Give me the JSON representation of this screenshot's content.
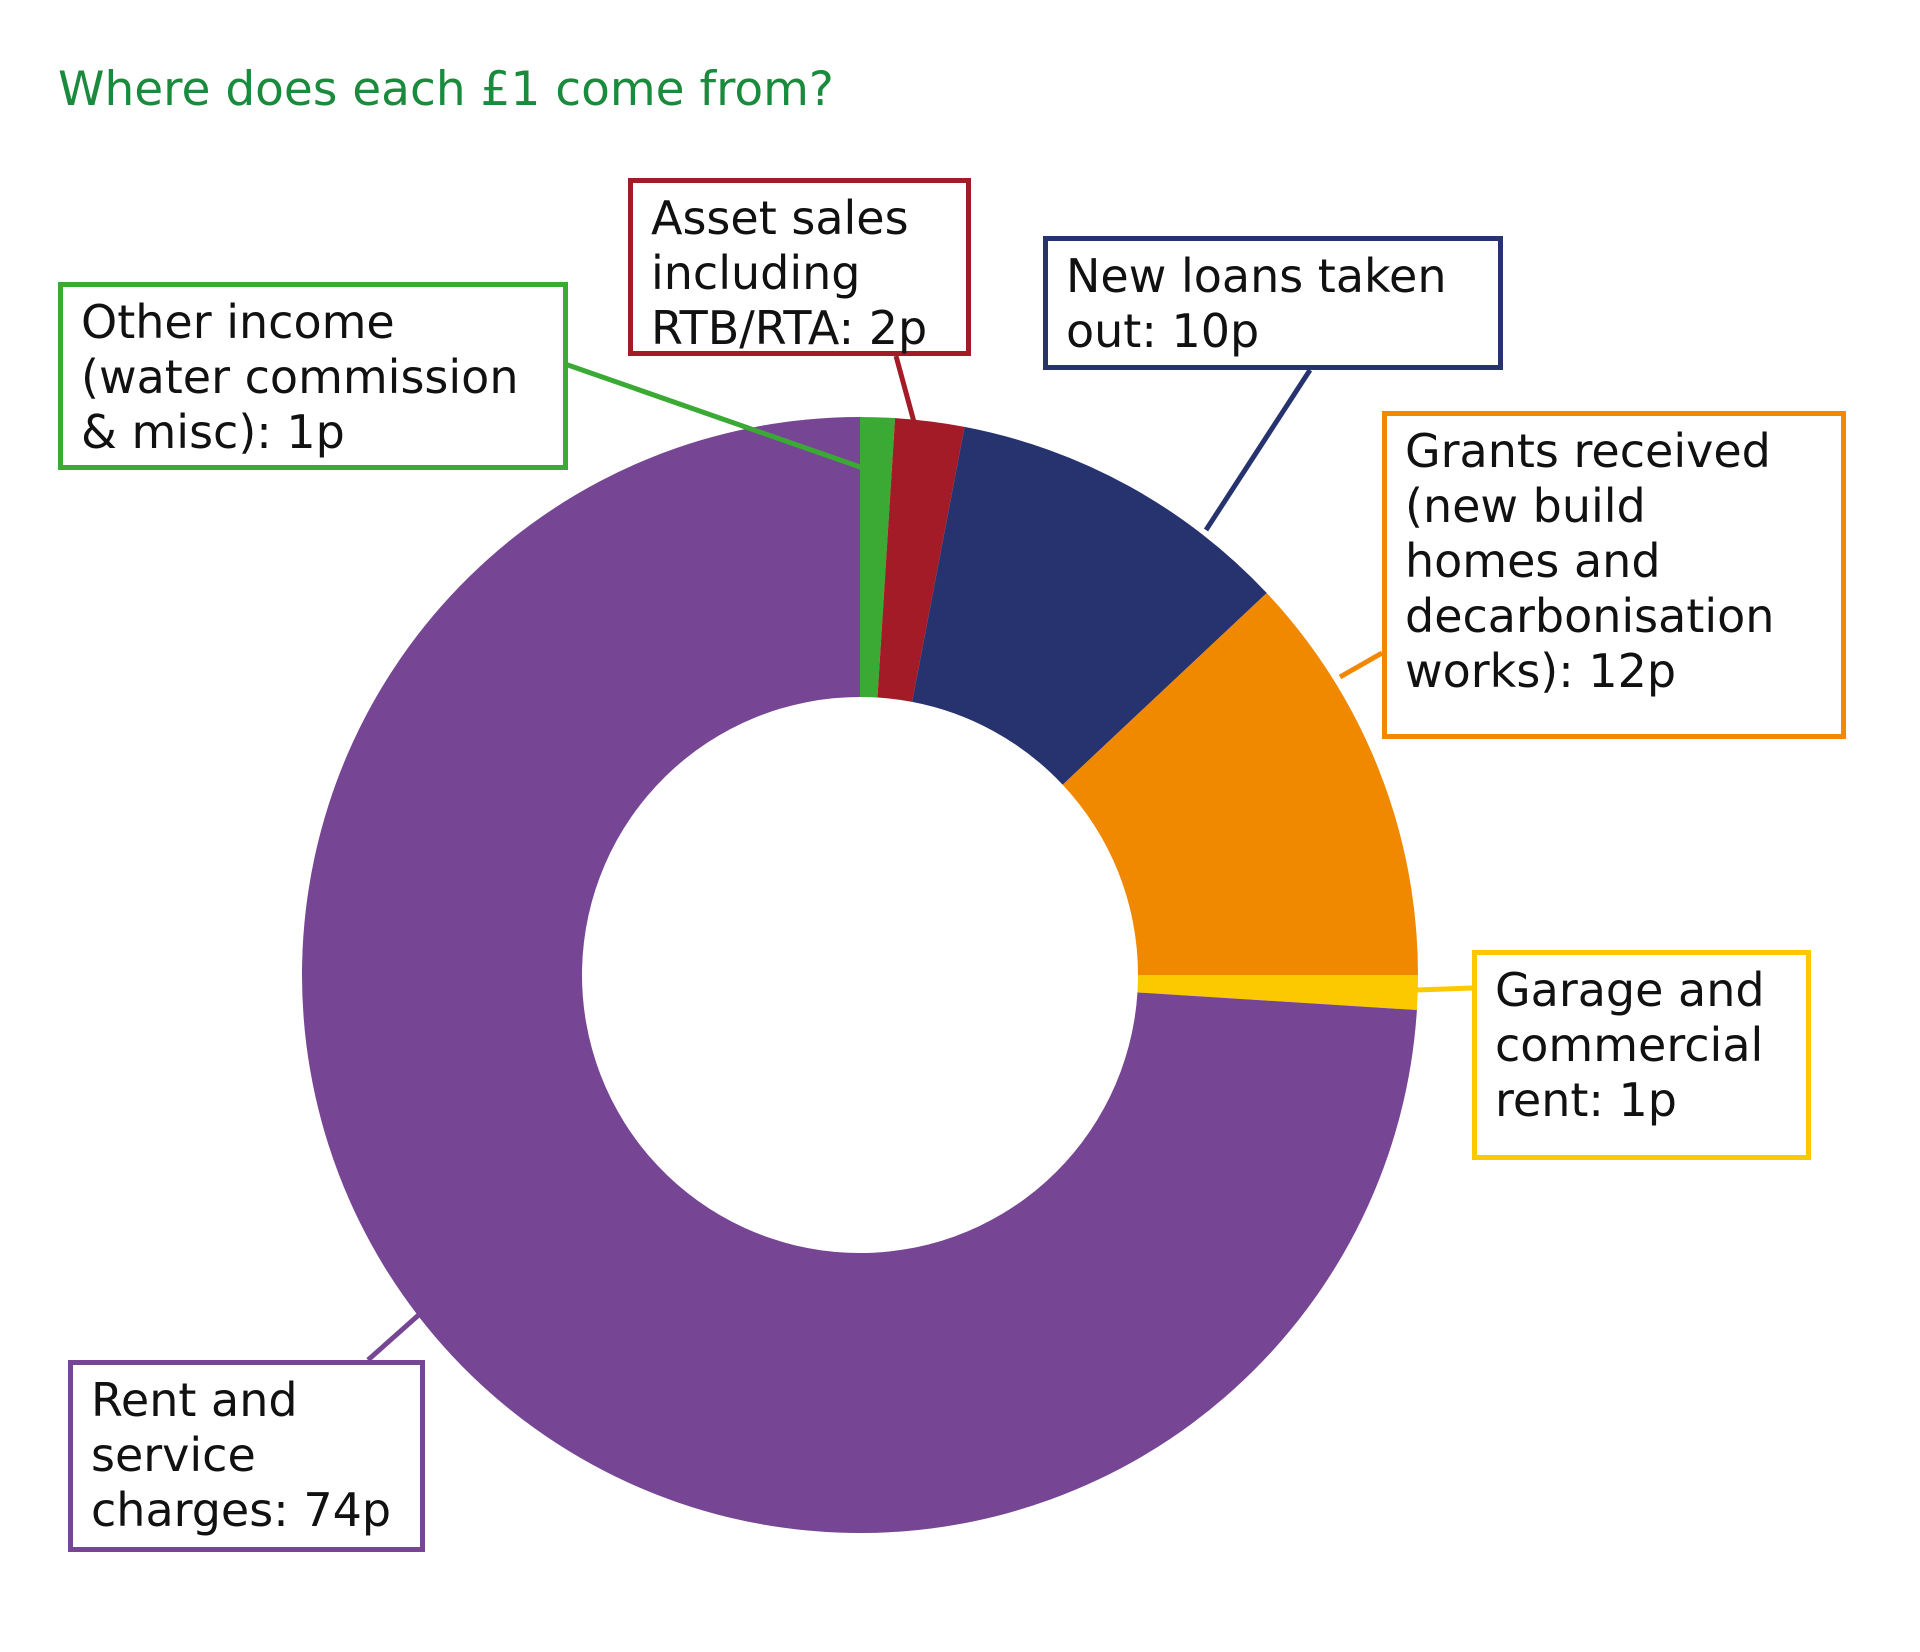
{
  "chart_data": {
    "type": "pie",
    "title": "Where does each £1 come from?",
    "unit": "p",
    "slices": [
      {
        "key": "other",
        "label_lines": [
          "Other income",
          "(water commission",
          "& misc): 1p"
        ],
        "value": 1,
        "color": "#3aaa35"
      },
      {
        "key": "assets",
        "label_lines": [
          "Asset sales",
          "including",
          "RTB/RTA: 2p"
        ],
        "value": 2,
        "color": "#a31b27"
      },
      {
        "key": "loans",
        "label_lines": [
          "New loans taken",
          "out: 10p"
        ],
        "value": 10,
        "color": "#27336f"
      },
      {
        "key": "grants",
        "label_lines": [
          "Grants received",
          "(new build",
          "homes and",
          "decarbonisation",
          "works): 12p"
        ],
        "value": 12,
        "color": "#f08800"
      },
      {
        "key": "garage",
        "label_lines": [
          "Garage and",
          "commercial",
          "rent: 1p"
        ],
        "value": 1,
        "color": "#fcc800"
      },
      {
        "key": "rent",
        "label_lines": [
          "Rent and",
          "service",
          "charges: 74p"
        ],
        "value": 74,
        "color": "#764694"
      }
    ]
  }
}
